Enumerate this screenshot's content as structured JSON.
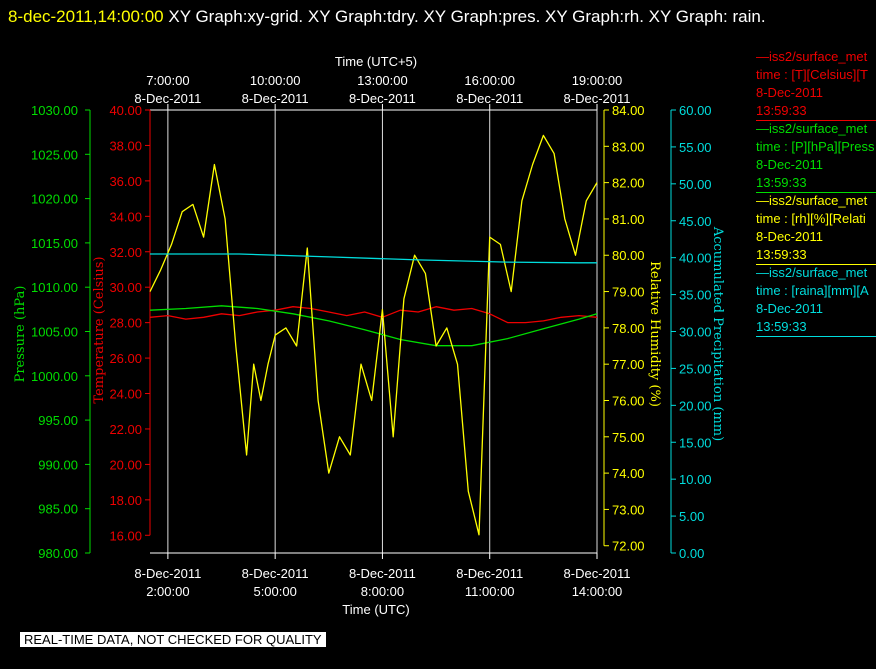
{
  "header": {
    "timestamp": "8-dec-2011,14:00:00",
    "graphs": "  XY Graph:xy-grid.  XY Graph:tdry.  XY Graph:pres.  XY Graph:rh.  XY Graph: rain."
  },
  "notice": "REAL-TIME DATA, NOT CHECKED FOR QUALITY",
  "colors": {
    "pressure": "#00dd00",
    "temperature": "#ee0000",
    "humidity": "#ffff00",
    "precip": "#00dddd",
    "grid": "#dddddd"
  },
  "legend": [
    {
      "line1": "—iss2/surface_met",
      "line2": "time : [T][Celsius][T",
      "line3": "8-Dec-2011",
      "line4": "13:59:33",
      "color": "#ee0000"
    },
    {
      "line1": "—iss2/surface_met",
      "line2": "time : [P][hPa][Press",
      "line3": "8-Dec-2011",
      "line4": "13:59:33",
      "color": "#00dd00"
    },
    {
      "line1": "—iss2/surface_met",
      "line2": "time : [rh][%][Relati",
      "line3": "8-Dec-2011",
      "line4": "13:59:33",
      "color": "#ffff00"
    },
    {
      "line1": "—iss2/surface_met",
      "line2": "time : [raina][mm][A",
      "line3": "8-Dec-2011",
      "line4": "13:59:33",
      "color": "#00dddd"
    }
  ],
  "chart_data": {
    "type": "line",
    "top_axis_label": "Time (UTC+5)",
    "bottom_axis_label": "Time (UTC)",
    "x_range_utc_hours": [
      1.5,
      14.0
    ],
    "top_ticks": [
      {
        "time": "7:00:00",
        "date": "8-Dec-2011",
        "utc_hour": 2
      },
      {
        "time": "10:00:00",
        "date": "8-Dec-2011",
        "utc_hour": 5
      },
      {
        "time": "13:00:00",
        "date": "8-Dec-2011",
        "utc_hour": 8
      },
      {
        "time": "16:00:00",
        "date": "8-Dec-2011",
        "utc_hour": 11
      },
      {
        "time": "19:00:00",
        "date": "8-Dec-2011",
        "utc_hour": 14
      }
    ],
    "bottom_ticks": [
      {
        "date": "8-Dec-2011",
        "time": "2:00:00",
        "utc_hour": 2
      },
      {
        "date": "8-Dec-2011",
        "time": "5:00:00",
        "utc_hour": 5
      },
      {
        "date": "8-Dec-2011",
        "time": "8:00:00",
        "utc_hour": 8
      },
      {
        "date": "8-Dec-2011",
        "time": "11:00:00",
        "utc_hour": 11
      },
      {
        "date": "8-Dec-2011",
        "time": "14:00:00",
        "utc_hour": 14
      }
    ],
    "axes": {
      "pressure": {
        "label": "Pressure (hPa)",
        "range": [
          980,
          1030
        ],
        "ticks": [
          "980.00",
          "985.00",
          "990.00",
          "995.00",
          "1000.00",
          "1005.00",
          "1010.00",
          "1015.00",
          "1020.00",
          "1025.00",
          "1030.00"
        ]
      },
      "temperature": {
        "label": "Temperature (Celsius)",
        "range": [
          15,
          40
        ],
        "ticks": [
          "16.00",
          "18.00",
          "20.00",
          "22.00",
          "24.00",
          "26.00",
          "28.00",
          "30.00",
          "32.00",
          "34.00",
          "36.00",
          "38.00",
          "40.00"
        ]
      },
      "humidity": {
        "label": "Relative Humidity (%)",
        "range": [
          71.8,
          84.0
        ],
        "ticks": [
          "72.00",
          "73.00",
          "74.00",
          "75.00",
          "76.00",
          "77.00",
          "78.00",
          "79.00",
          "80.00",
          "81.00",
          "82.00",
          "83.00",
          "84.00"
        ]
      },
      "precip": {
        "label": "Accumulated Precipitation (mm)",
        "range": [
          0,
          60
        ],
        "ticks": [
          "0.00",
          "5.00",
          "10.00",
          "15.00",
          "20.00",
          "25.00",
          "30.00",
          "35.00",
          "40.00",
          "45.00",
          "50.00",
          "55.00",
          "60.00"
        ]
      }
    },
    "series": [
      {
        "name": "Temperature",
        "axis": "temperature",
        "x": [
          1.5,
          2.0,
          2.5,
          3.0,
          3.5,
          4.0,
          4.5,
          5.0,
          5.5,
          6.0,
          6.5,
          7.0,
          7.5,
          8.0,
          8.5,
          9.0,
          9.5,
          10.0,
          10.5,
          11.0,
          11.5,
          12.0,
          12.5,
          13.0,
          13.5,
          14.0
        ],
        "values": [
          28.3,
          28.4,
          28.2,
          28.3,
          28.5,
          28.4,
          28.6,
          28.7,
          28.9,
          28.8,
          28.6,
          28.4,
          28.6,
          28.3,
          28.7,
          28.6,
          28.9,
          28.7,
          28.8,
          28.5,
          28.0,
          28.0,
          28.1,
          28.3,
          28.4,
          28.3
        ]
      },
      {
        "name": "Pressure",
        "axis": "pressure",
        "x": [
          1.5,
          2.5,
          3.5,
          4.5,
          5.5,
          6.5,
          7.5,
          8.5,
          9.5,
          10.5,
          11.5,
          12.5,
          13.5,
          14.0
        ],
        "values": [
          1007.4,
          1007.6,
          1007.9,
          1007.6,
          1007.0,
          1006.2,
          1005.2,
          1004.1,
          1003.4,
          1003.4,
          1004.2,
          1005.3,
          1006.4,
          1007.0
        ]
      },
      {
        "name": "Relative Humidity",
        "axis": "humidity",
        "x": [
          1.5,
          1.8,
          2.1,
          2.4,
          2.7,
          3.0,
          3.3,
          3.6,
          3.9,
          4.2,
          4.4,
          4.6,
          4.8,
          5.0,
          5.3,
          5.6,
          5.9,
          6.2,
          6.5,
          6.8,
          7.1,
          7.4,
          7.7,
          8.0,
          8.3,
          8.6,
          8.9,
          9.2,
          9.5,
          9.8,
          10.1,
          10.4,
          10.7,
          11.0,
          11.3,
          11.6,
          11.9,
          12.2,
          12.5,
          12.8,
          13.1,
          13.4,
          13.7,
          14.0
        ],
        "values": [
          79.0,
          79.6,
          80.3,
          81.2,
          81.4,
          80.5,
          82.5,
          81.0,
          77.5,
          74.5,
          77.0,
          76.0,
          77.0,
          77.8,
          78.0,
          77.5,
          80.2,
          76.0,
          74.0,
          75.0,
          74.5,
          77.0,
          76.0,
          78.5,
          75.0,
          78.8,
          80.0,
          79.5,
          77.5,
          78.0,
          77.0,
          73.5,
          72.3,
          80.5,
          80.3,
          79.0,
          81.5,
          82.5,
          83.3,
          82.8,
          81.0,
          80.0,
          81.5,
          82.0
        ]
      },
      {
        "name": "Accumulated Precipitation",
        "axis": "precip",
        "x": [
          1.5,
          4.0,
          6.5,
          9.0,
          11.5,
          13.5,
          14.0
        ],
        "values": [
          40.5,
          40.5,
          40.1,
          39.7,
          39.4,
          39.3,
          39.3
        ]
      }
    ]
  }
}
